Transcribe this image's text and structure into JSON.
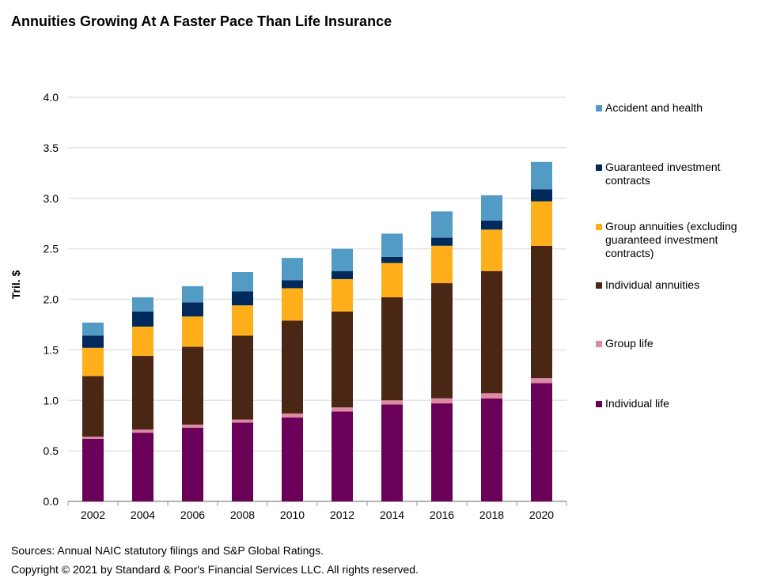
{
  "title": "Annuities Growing At A Faster Pace Than Life Insurance",
  "sources": "Sources: Annual NAIC statutory filings and S&P Global Ratings.",
  "copyright": "Copyright © 2021 by Standard & Poor's Financial Services LLC. All rights reserved.",
  "chart_data": {
    "type": "bar",
    "stacked": true,
    "title": "Annuities Growing At A Faster Pace Than Life Insurance",
    "xlabel": "",
    "ylabel": "Tril. $",
    "ylim": [
      0,
      4.0
    ],
    "yticks": [
      "0.0",
      "0.5",
      "1.0",
      "1.5",
      "2.0",
      "2.5",
      "3.0",
      "3.5",
      "4.0"
    ],
    "grid": true,
    "legend_position": "right",
    "categories": [
      "2002",
      "2004",
      "2006",
      "2008",
      "2010",
      "2012",
      "2014",
      "2016",
      "2018",
      "2020"
    ],
    "series": [
      {
        "name": "Individual life",
        "color": "#6b0058",
        "values": [
          0.62,
          0.68,
          0.73,
          0.78,
          0.83,
          0.89,
          0.96,
          0.97,
          1.02,
          1.17
        ]
      },
      {
        "name": "Group life",
        "color": "#dd8aa3",
        "values": [
          0.02,
          0.03,
          0.03,
          0.03,
          0.04,
          0.04,
          0.04,
          0.05,
          0.05,
          0.05
        ]
      },
      {
        "name": "Individual annuities",
        "color": "#4a2615",
        "values": [
          0.6,
          0.73,
          0.77,
          0.83,
          0.92,
          0.95,
          1.02,
          1.14,
          1.21,
          1.31
        ]
      },
      {
        "name": "Group annuities (excluding guaranteed investment contracts)",
        "color": "#ffaf19",
        "values": [
          0.28,
          0.29,
          0.3,
          0.3,
          0.32,
          0.32,
          0.34,
          0.37,
          0.41,
          0.44
        ]
      },
      {
        "name": "Guaranteed investment contracts",
        "color": "#002a5c",
        "values": [
          0.12,
          0.15,
          0.14,
          0.14,
          0.08,
          0.08,
          0.06,
          0.08,
          0.09,
          0.12
        ]
      },
      {
        "name": "Accident and health",
        "color": "#519bc5",
        "values": [
          0.13,
          0.14,
          0.16,
          0.19,
          0.22,
          0.22,
          0.23,
          0.26,
          0.25,
          0.27
        ]
      }
    ]
  }
}
